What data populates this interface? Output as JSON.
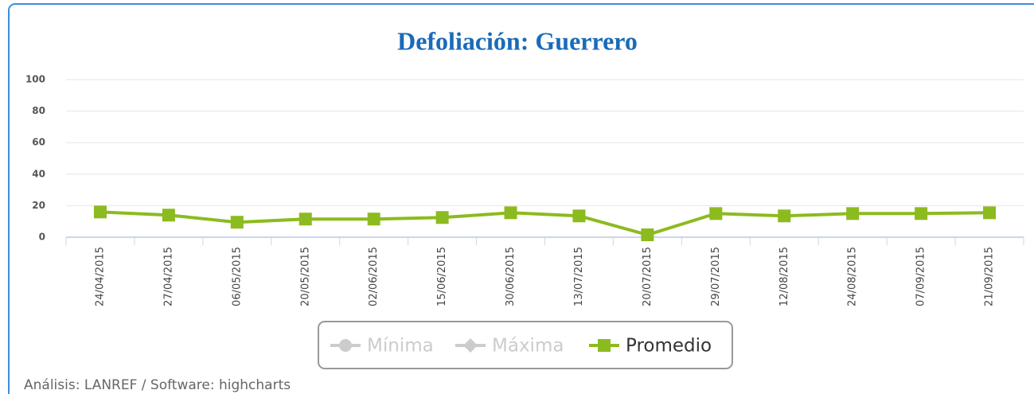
{
  "chart_data": {
    "type": "line",
    "title": "Defoliación: Guerrero",
    "categories": [
      "24/04/2015",
      "27/04/2015",
      "06/05/2015",
      "20/05/2015",
      "02/06/2015",
      "15/06/2015",
      "30/06/2015",
      "13/07/2015",
      "20/07/2015",
      "29/07/2015",
      "12/08/2015",
      "24/08/2015",
      "07/09/2015",
      "21/09/2015"
    ],
    "series": [
      {
        "name": "Mínima",
        "color": "#cccccc",
        "marker": "circle",
        "visible": false,
        "values": [
          null,
          null,
          null,
          null,
          null,
          null,
          null,
          null,
          null,
          null,
          null,
          null,
          null,
          null
        ]
      },
      {
        "name": "Máxima",
        "color": "#cccccc",
        "marker": "diamond",
        "visible": false,
        "values": [
          null,
          null,
          null,
          null,
          null,
          null,
          null,
          null,
          null,
          null,
          null,
          null,
          null,
          null
        ]
      },
      {
        "name": "Promedio",
        "color": "#8cbb1f",
        "marker": "square",
        "visible": true,
        "values": [
          16,
          14,
          9.5,
          11.5,
          11.5,
          12.5,
          15.5,
          13.5,
          1.5,
          15,
          13.5,
          15,
          15,
          15.5
        ]
      }
    ],
    "ylim": [
      0,
      100
    ],
    "yticks": [
      0,
      20,
      40,
      60,
      80,
      100
    ],
    "grid": true,
    "credits": "Análisis: LANREF / Software: highcharts"
  }
}
